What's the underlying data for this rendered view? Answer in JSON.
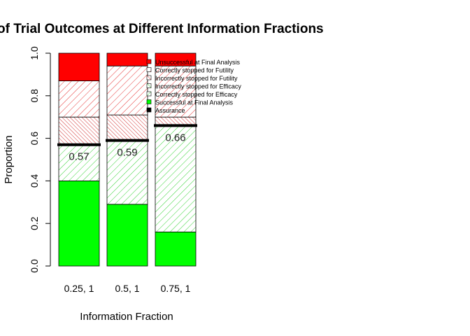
{
  "chart_data": {
    "type": "bar",
    "title": "of Trial Outcomes at Different Information Fractions",
    "xlabel": "Information Fraction",
    "ylabel": "Proportion",
    "ylim": [
      0,
      1
    ],
    "yticks": [
      "0.0",
      "0.2",
      "0.4",
      "0.6",
      "0.8",
      "1.0"
    ],
    "categories": [
      "0.25, 1",
      "0.5, 1",
      "0.75, 1"
    ],
    "series": [
      {
        "name": "Successful at Final Analysis",
        "color": "#00ff00",
        "fill": "solid",
        "values": [
          0.4,
          0.29,
          0.16
        ]
      },
      {
        "name": "Correctly stopped for Efficacy",
        "color": "#00c800",
        "fill": "hatch",
        "values": [
          0.17,
          0.3,
          0.5
        ]
      },
      {
        "name": "Incorrectly stopped for Efficacy",
        "color": "#00c800",
        "fill": "hatch-dense",
        "values": [
          0.0,
          0.0,
          0.0
        ]
      },
      {
        "name": "Incorrectly stopped for Futility",
        "color": "#c80000",
        "fill": "hatch-dense",
        "values": [
          0.13,
          0.12,
          0.04
        ]
      },
      {
        "name": "Correctly stopped for Futility",
        "color": "#e00000",
        "fill": "hatch",
        "values": [
          0.17,
          0.23,
          0.24
        ]
      },
      {
        "name": "Unsuccessful at Final Analysis",
        "color": "#ff0000",
        "fill": "solid",
        "values": [
          0.13,
          0.06,
          0.06
        ]
      }
    ],
    "assurance": {
      "name": "Assurance",
      "values": [
        0.57,
        0.59,
        0.66
      ],
      "labels": [
        "0.57",
        "0.59",
        "0.66"
      ]
    },
    "legend": {
      "position": "top-right",
      "entries": [
        {
          "label": "Unsuccessful at Final Analysis",
          "color": "#ff0000",
          "fill": "solid"
        },
        {
          "label": "Correctly stopped for Futility",
          "color": "#e00000",
          "fill": "hatch"
        },
        {
          "label": "Incorrectly stopped for Futility",
          "color": "#c80000",
          "fill": "hatch-dense"
        },
        {
          "label": "Incorrectly stopped for Efficacy",
          "color": "#00c800",
          "fill": "hatch-dense"
        },
        {
          "label": "Correctly stopped for Efficacy",
          "color": "#00c800",
          "fill": "hatch"
        },
        {
          "label": "Successful at Final Analysis",
          "color": "#00ff00",
          "fill": "solid"
        },
        {
          "label": "Assurance",
          "color": "#000000",
          "fill": "solid"
        }
      ]
    }
  }
}
